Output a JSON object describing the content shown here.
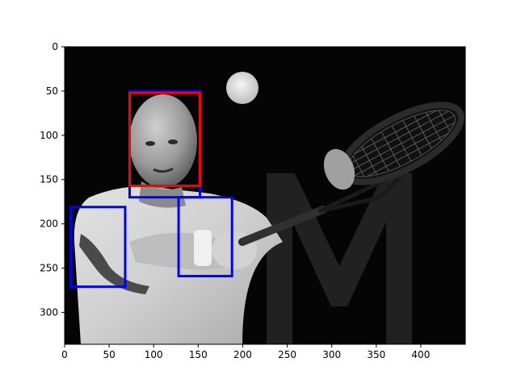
{
  "image_extent": {
    "x": [
      0,
      450
    ],
    "y": [
      0,
      336
    ]
  },
  "axes": {
    "x_ticks": [
      {
        "value": 0,
        "label": "0"
      },
      {
        "value": 50,
        "label": "50"
      },
      {
        "value": 100,
        "label": "100"
      },
      {
        "value": 150,
        "label": "150"
      },
      {
        "value": 200,
        "label": "200"
      },
      {
        "value": 250,
        "label": "250"
      },
      {
        "value": 300,
        "label": "300"
      },
      {
        "value": 350,
        "label": "350"
      },
      {
        "value": 400,
        "label": "400"
      }
    ],
    "y_ticks": [
      {
        "value": 0,
        "label": "0"
      },
      {
        "value": 50,
        "label": "50"
      },
      {
        "value": 100,
        "label": "100"
      },
      {
        "value": 150,
        "label": "150"
      },
      {
        "value": 200,
        "label": "200"
      },
      {
        "value": 250,
        "label": "250"
      },
      {
        "value": 300,
        "label": "300"
      }
    ]
  },
  "boxes": [
    {
      "name": "head-box",
      "color": "#0000ff",
      "x0": 73,
      "y0": 50,
      "x1": 152,
      "y1": 170
    },
    {
      "name": "face-box",
      "color": "#ff0000",
      "x0": 73,
      "y0": 52,
      "x1": 152,
      "y1": 157
    },
    {
      "name": "left-arm-box",
      "color": "#0000ff",
      "x0": 7,
      "y0": 181,
      "x1": 68,
      "y1": 271
    },
    {
      "name": "hands-box",
      "color": "#0000ff",
      "x0": 128,
      "y0": 170,
      "x1": 188,
      "y1": 259
    }
  ],
  "colors": {
    "photo_background": "#050505",
    "axis": "#000000"
  }
}
